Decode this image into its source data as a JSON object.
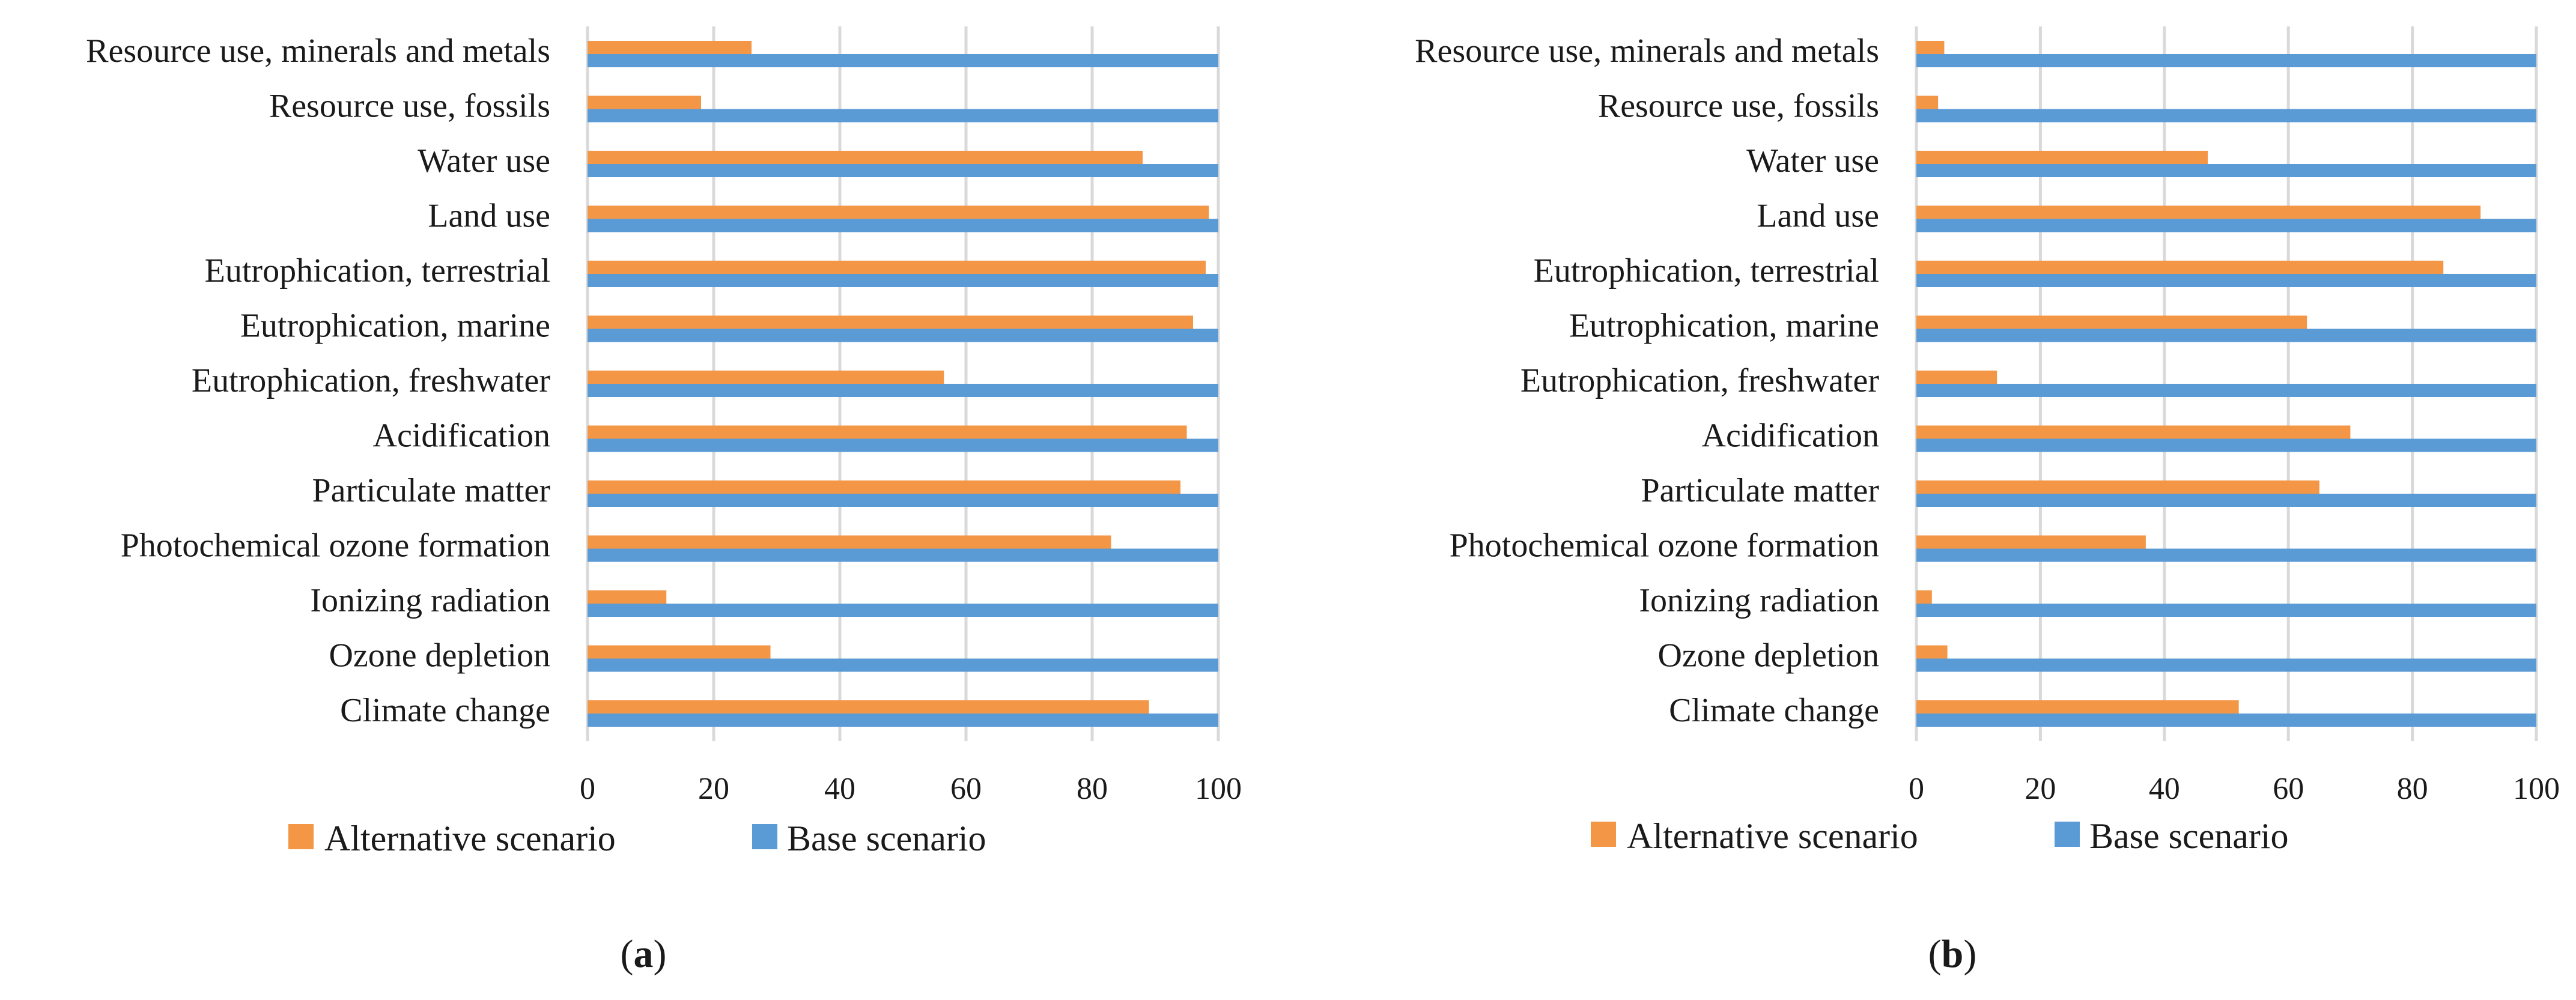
{
  "chart_data": [
    {
      "type": "bar",
      "orientation": "horizontal",
      "panel_label": "(a)",
      "panel_letter": "a",
      "categories": [
        "Resource use, minerals and metals",
        "Resource use, fossils",
        "Water use",
        "Land use",
        "Eutrophication, terrestrial",
        "Eutrophication, marine",
        "Eutrophication, freshwater",
        "Acidification",
        "Particulate matter",
        "Photochemical ozone formation",
        "Ionizing radiation",
        "Ozone depletion",
        "Climate change"
      ],
      "series": [
        {
          "name": "Alternative scenario",
          "color": "#f39646",
          "values": [
            26,
            18,
            88,
            98.5,
            98,
            96,
            56.5,
            95,
            94,
            83,
            12.5,
            29,
            89
          ]
        },
        {
          "name": "Base scenario",
          "color": "#5b9bd5",
          "values": [
            100,
            100,
            100,
            100,
            100,
            100,
            100,
            100,
            100,
            100,
            100,
            100,
            100
          ]
        }
      ],
      "xlim": [
        0,
        100
      ],
      "xticks": [
        "0",
        "20",
        "40",
        "60",
        "80",
        "100"
      ],
      "grid": true,
      "legend_position": "bottom"
    },
    {
      "type": "bar",
      "orientation": "horizontal",
      "panel_label": "(b)",
      "panel_letter": "b",
      "categories": [
        "Resource use, minerals and metals",
        "Resource use, fossils",
        "Water use",
        "Land use",
        "Eutrophication, terrestrial",
        "Eutrophication, marine",
        "Eutrophication, freshwater",
        "Acidification",
        "Particulate matter",
        "Photochemical ozone formation",
        "Ionizing radiation",
        "Ozone depletion",
        "Climate change"
      ],
      "series": [
        {
          "name": "Alternative scenario",
          "color": "#f39646",
          "values": [
            4.5,
            3.5,
            47,
            91,
            85,
            63,
            13,
            70,
            65,
            37,
            2.5,
            5,
            52
          ]
        },
        {
          "name": "Base scenario",
          "color": "#5b9bd5",
          "values": [
            100,
            100,
            100,
            100,
            100,
            100,
            100,
            100,
            100,
            100,
            100,
            100,
            100
          ]
        }
      ],
      "xlim": [
        0,
        100
      ],
      "xticks": [
        "0",
        "20",
        "40",
        "60",
        "80",
        "100"
      ],
      "grid": true,
      "legend_position": "bottom"
    }
  ]
}
